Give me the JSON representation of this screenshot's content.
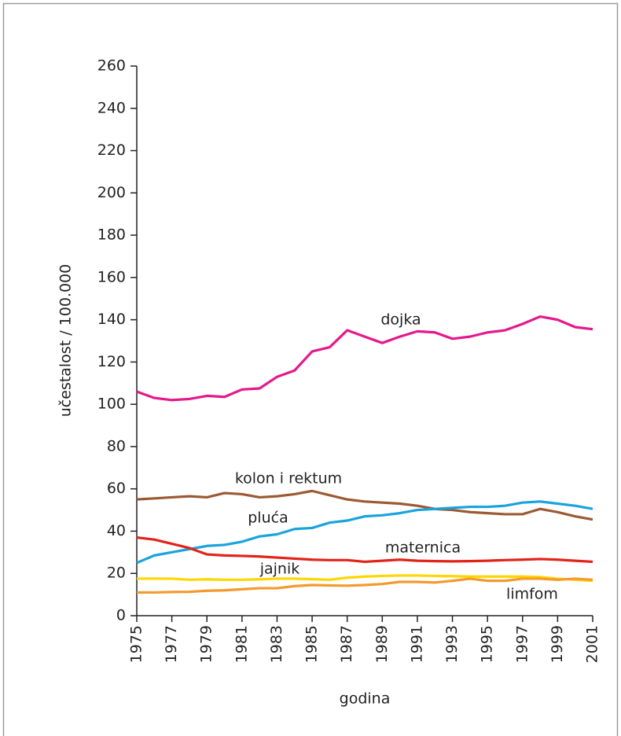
{
  "chart_data": {
    "type": "line",
    "xlabel": "godina",
    "ylabel": "učestalost / 100.000",
    "x": [
      1975,
      1976,
      1977,
      1978,
      1979,
      1980,
      1981,
      1982,
      1983,
      1984,
      1985,
      1986,
      1987,
      1988,
      1989,
      1990,
      1991,
      1992,
      1993,
      1994,
      1995,
      1996,
      1997,
      1998,
      1999,
      2000,
      2001
    ],
    "series": [
      {
        "name": "dojka",
        "color": "#e5198c",
        "values": [
          106,
          103,
          102,
          102.5,
          104,
          103.5,
          107,
          107.5,
          113,
          116,
          125,
          127,
          135,
          132,
          129,
          132,
          134.5,
          134,
          131,
          132,
          134,
          135,
          138,
          141.5,
          140,
          136.5,
          135.5
        ]
      },
      {
        "name": "kolon i rektum",
        "color": "#9c5a33",
        "values": [
          55,
          55.5,
          56,
          56.5,
          56,
          58,
          57.5,
          56,
          56.5,
          57.5,
          59,
          57,
          55,
          54,
          53.5,
          53,
          52,
          50.5,
          50,
          49,
          48.5,
          48,
          48,
          50.5,
          49,
          47,
          45.5
        ]
      },
      {
        "name": "pluća",
        "color": "#1aa3dc",
        "values": [
          25,
          28.5,
          30,
          31.5,
          33,
          33.5,
          35,
          37.5,
          38.5,
          41,
          41.5,
          44,
          45,
          47,
          47.5,
          48.5,
          50,
          50.5,
          51,
          51.5,
          51.5,
          52,
          53.5,
          54,
          53,
          52,
          50.5
        ]
      },
      {
        "name": "maternica",
        "color": "#e2231a",
        "values": [
          37,
          36,
          34,
          32,
          29,
          28.5,
          28.3,
          28,
          27.5,
          27,
          26.5,
          26.3,
          26.3,
          25.5,
          26,
          26.5,
          26,
          25.8,
          25.7,
          25.8,
          26,
          26.3,
          26.5,
          26.8,
          26.5,
          26,
          25.5
        ]
      },
      {
        "name": "jajnik",
        "color": "#ffd600",
        "values": [
          17.5,
          17.5,
          17.5,
          17,
          17.2,
          17,
          17,
          17.2,
          17.5,
          17.5,
          17.3,
          17,
          18,
          18.5,
          18.8,
          19,
          19,
          18.8,
          18.7,
          18.5,
          18.5,
          18.5,
          18.5,
          18.3,
          17.5,
          17,
          16.5
        ]
      },
      {
        "name": "limfom",
        "color": "#f39a2d",
        "values": [
          11,
          11,
          11.2,
          11.3,
          11.8,
          12,
          12.5,
          13,
          13,
          14,
          14.5,
          14.3,
          14.2,
          14.5,
          15,
          16,
          16,
          15.7,
          16.5,
          17.5,
          16.5,
          16.5,
          17.5,
          17.5,
          17,
          17.5,
          17
        ]
      }
    ],
    "xlim": [
      1975,
      2001
    ],
    "xticks": [
      1975,
      1977,
      1979,
      1981,
      1983,
      1985,
      1987,
      1989,
      1991,
      1993,
      1995,
      1997,
      1999,
      2001
    ],
    "ylim": [
      0,
      260
    ],
    "yticks": [
      0,
      20,
      40,
      60,
      80,
      100,
      120,
      140,
      160,
      180,
      200,
      220,
      240,
      260
    ],
    "grid": false
  }
}
